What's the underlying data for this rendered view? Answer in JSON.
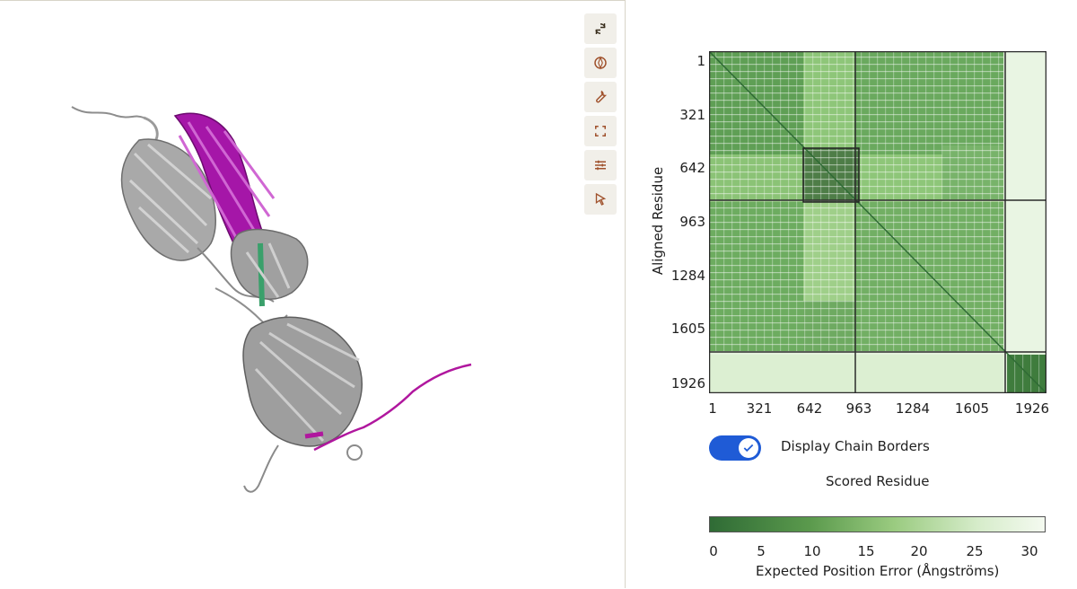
{
  "toolbar": {
    "icons": [
      "reset-icon",
      "spin-icon",
      "settings-icon",
      "fullscreen-icon",
      "adjust-icon",
      "select-icon"
    ]
  },
  "pae": {
    "y_axis_label": "Aligned Residue",
    "x_axis_label": "Scored Residue",
    "y_ticks": [
      "1",
      "321",
      "642",
      "963",
      "1284",
      "1605",
      "1926"
    ],
    "x_ticks": [
      "1",
      "321",
      "642",
      "963",
      "1284",
      "1605",
      "1926"
    ],
    "chain_borders_label": "Display Chain Borders",
    "chain_borders_on": true,
    "colorbar_ticks": [
      "0",
      "5",
      "10",
      "15",
      "20",
      "25",
      "30"
    ],
    "colorbar_title": "Expected Position Error (Ångströms)",
    "colors": {
      "low": "#2f6b35",
      "high": "#f4faf0",
      "toggle": "#1f5bd6",
      "chain_a": "#9a9a9a",
      "chain_b": "#b0179e",
      "chain_c": "#3aa06b"
    }
  }
}
